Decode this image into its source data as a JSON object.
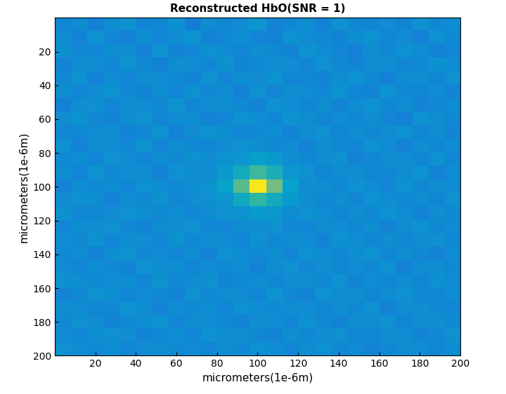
{
  "chart_data": {
    "type": "heatmap",
    "title": "Reconstructed HbO(SNR = 1)",
    "x_label": "micrometers(1e-6m)",
    "y_label": "micrometers(1e-6m)",
    "xlim": [
      0,
      200
    ],
    "ylim": [
      200,
      0
    ],
    "xticks": [
      20,
      40,
      60,
      80,
      100,
      120,
      140,
      160,
      180,
      200
    ],
    "yticks": [
      20,
      40,
      60,
      80,
      100,
      120,
      140,
      160,
      180,
      200
    ],
    "cell_range": [
      0,
      1
    ],
    "cells": [
      [
        0.27,
        0.3,
        0.25,
        0.29,
        0.32,
        0.26,
        0.28,
        0.31,
        0.24,
        0.3,
        0.27,
        0.29,
        0.33,
        0.26,
        0.28,
        0.3,
        0.25,
        0.31,
        0.28,
        0.27,
        0.29,
        0.26,
        0.32,
        0.28,
        0.3
      ],
      [
        0.29,
        0.26,
        0.31,
        0.28,
        0.25,
        0.3,
        0.27,
        0.29,
        0.32,
        0.26,
        0.28,
        0.3,
        0.27,
        0.25,
        0.31,
        0.29,
        0.28,
        0.26,
        0.3,
        0.32,
        0.27,
        0.29,
        0.25,
        0.31,
        0.28
      ],
      [
        0.31,
        0.28,
        0.27,
        0.3,
        0.29,
        0.25,
        0.32,
        0.26,
        0.28,
        0.31,
        0.29,
        0.27,
        0.3,
        0.28,
        0.26,
        0.32,
        0.29,
        0.27,
        0.25,
        0.3,
        0.28,
        0.31,
        0.29,
        0.26,
        0.27
      ],
      [
        0.26,
        0.29,
        0.3,
        0.27,
        0.31,
        0.28,
        0.25,
        0.3,
        0.29,
        0.27,
        0.32,
        0.26,
        0.28,
        0.3,
        0.29,
        0.27,
        0.31,
        0.28,
        0.26,
        0.29,
        0.3,
        0.27,
        0.28,
        0.32,
        0.29
      ],
      [
        0.28,
        0.31,
        0.26,
        0.29,
        0.27,
        0.3,
        0.29,
        0.28,
        0.26,
        0.31,
        0.27,
        0.3,
        0.29,
        0.32,
        0.27,
        0.28,
        0.26,
        0.3,
        0.31,
        0.28,
        0.25,
        0.29,
        0.3,
        0.27,
        0.31
      ],
      [
        0.3,
        0.27,
        0.29,
        0.32,
        0.28,
        0.26,
        0.3,
        0.27,
        0.31,
        0.28,
        0.29,
        0.25,
        0.31,
        0.27,
        0.3,
        0.29,
        0.28,
        0.32,
        0.27,
        0.26,
        0.31,
        0.28,
        0.27,
        0.29,
        0.26
      ],
      [
        0.25,
        0.29,
        0.31,
        0.27,
        0.3,
        0.29,
        0.28,
        0.32,
        0.27,
        0.29,
        0.3,
        0.28,
        0.26,
        0.31,
        0.29,
        0.27,
        0.3,
        0.26,
        0.29,
        0.31,
        0.28,
        0.3,
        0.26,
        0.28,
        0.3
      ],
      [
        0.29,
        0.32,
        0.28,
        0.26,
        0.29,
        0.31,
        0.27,
        0.29,
        0.3,
        0.26,
        0.28,
        0.31,
        0.29,
        0.27,
        0.32,
        0.3,
        0.27,
        0.29,
        0.28,
        0.3,
        0.27,
        0.25,
        0.31,
        0.29,
        0.28
      ],
      [
        0.27,
        0.28,
        0.3,
        0.29,
        0.26,
        0.28,
        0.31,
        0.25,
        0.29,
        0.32,
        0.3,
        0.27,
        0.28,
        0.3,
        0.26,
        0.29,
        0.31,
        0.27,
        0.3,
        0.28,
        0.29,
        0.31,
        0.27,
        0.3,
        0.26
      ],
      [
        0.31,
        0.26,
        0.29,
        0.3,
        0.28,
        0.32,
        0.27,
        0.3,
        0.28,
        0.27,
        0.29,
        0.31,
        0.3,
        0.28,
        0.29,
        0.26,
        0.3,
        0.28,
        0.27,
        0.31,
        0.29,
        0.26,
        0.3,
        0.28,
        0.29
      ],
      [
        0.28,
        0.3,
        0.27,
        0.31,
        0.29,
        0.27,
        0.3,
        0.28,
        0.31,
        0.29,
        0.32,
        0.33,
        0.36,
        0.34,
        0.3,
        0.28,
        0.29,
        0.31,
        0.26,
        0.28,
        0.3,
        0.29,
        0.27,
        0.31,
        0.27
      ],
      [
        0.3,
        0.27,
        0.31,
        0.28,
        0.3,
        0.29,
        0.26,
        0.31,
        0.29,
        0.3,
        0.34,
        0.42,
        0.52,
        0.44,
        0.33,
        0.31,
        0.27,
        0.29,
        0.3,
        0.27,
        0.28,
        0.3,
        0.31,
        0.26,
        0.3
      ],
      [
        0.26,
        0.29,
        0.28,
        0.3,
        0.27,
        0.31,
        0.29,
        0.28,
        0.3,
        0.32,
        0.38,
        0.56,
        0.95,
        0.6,
        0.37,
        0.29,
        0.3,
        0.28,
        0.31,
        0.29,
        0.27,
        0.31,
        0.28,
        0.3,
        0.29
      ],
      [
        0.29,
        0.31,
        0.3,
        0.26,
        0.29,
        0.28,
        0.31,
        0.27,
        0.29,
        0.31,
        0.33,
        0.41,
        0.5,
        0.42,
        0.34,
        0.3,
        0.28,
        0.3,
        0.27,
        0.31,
        0.29,
        0.28,
        0.3,
        0.27,
        0.31
      ],
      [
        0.31,
        0.28,
        0.27,
        0.29,
        0.31,
        0.3,
        0.28,
        0.3,
        0.27,
        0.29,
        0.31,
        0.32,
        0.35,
        0.33,
        0.29,
        0.31,
        0.29,
        0.27,
        0.3,
        0.28,
        0.31,
        0.29,
        0.26,
        0.3,
        0.28
      ],
      [
        0.27,
        0.3,
        0.29,
        0.31,
        0.28,
        0.26,
        0.3,
        0.29,
        0.31,
        0.28,
        0.27,
        0.3,
        0.29,
        0.31,
        0.28,
        0.27,
        0.3,
        0.29,
        0.28,
        0.3,
        0.26,
        0.29,
        0.31,
        0.28,
        0.29
      ],
      [
        0.3,
        0.28,
        0.31,
        0.27,
        0.3,
        0.29,
        0.27,
        0.32,
        0.28,
        0.3,
        0.29,
        0.27,
        0.31,
        0.28,
        0.3,
        0.29,
        0.26,
        0.31,
        0.29,
        0.27,
        0.3,
        0.28,
        0.29,
        0.31,
        0.27
      ],
      [
        0.28,
        0.29,
        0.26,
        0.3,
        0.32,
        0.28,
        0.29,
        0.27,
        0.3,
        0.26,
        0.31,
        0.29,
        0.28,
        0.3,
        0.27,
        0.31,
        0.29,
        0.28,
        0.3,
        0.32,
        0.27,
        0.3,
        0.28,
        0.26,
        0.3
      ],
      [
        0.29,
        0.27,
        0.3,
        0.28,
        0.26,
        0.31,
        0.29,
        0.3,
        0.27,
        0.29,
        0.28,
        0.3,
        0.26,
        0.29,
        0.31,
        0.28,
        0.3,
        0.27,
        0.29,
        0.28,
        0.31,
        0.26,
        0.3,
        0.29,
        0.28
      ],
      [
        0.31,
        0.3,
        0.28,
        0.29,
        0.3,
        0.27,
        0.32,
        0.28,
        0.29,
        0.31,
        0.26,
        0.28,
        0.3,
        0.27,
        0.29,
        0.3,
        0.28,
        0.31,
        0.26,
        0.29,
        0.28,
        0.3,
        0.27,
        0.31,
        0.29
      ],
      [
        0.26,
        0.28,
        0.31,
        0.3,
        0.27,
        0.29,
        0.28,
        0.26,
        0.31,
        0.28,
        0.3,
        0.29,
        0.27,
        0.32,
        0.28,
        0.26,
        0.31,
        0.29,
        0.3,
        0.27,
        0.29,
        0.31,
        0.28,
        0.27,
        0.3
      ],
      [
        0.3,
        0.29,
        0.27,
        0.28,
        0.31,
        0.3,
        0.26,
        0.29,
        0.28,
        0.3,
        0.27,
        0.31,
        0.29,
        0.28,
        0.3,
        0.29,
        0.27,
        0.3,
        0.28,
        0.31,
        0.26,
        0.29,
        0.3,
        0.28,
        0.27
      ],
      [
        0.28,
        0.31,
        0.29,
        0.26,
        0.28,
        0.3,
        0.31,
        0.27,
        0.3,
        0.29,
        0.28,
        0.26,
        0.3,
        0.29,
        0.27,
        0.31,
        0.28,
        0.26,
        0.3,
        0.29,
        0.31,
        0.27,
        0.29,
        0.3,
        0.28
      ],
      [
        0.29,
        0.27,
        0.3,
        0.31,
        0.29,
        0.26,
        0.28,
        0.3,
        0.27,
        0.31,
        0.29,
        0.3,
        0.28,
        0.26,
        0.3,
        0.28,
        0.29,
        0.31,
        0.27,
        0.28,
        0.3,
        0.29,
        0.26,
        0.28,
        0.31
      ],
      [
        0.31,
        0.29,
        0.28,
        0.3,
        0.27,
        0.29,
        0.3,
        0.28,
        0.29,
        0.27,
        0.3,
        0.28,
        0.31,
        0.29,
        0.27,
        0.3,
        0.31,
        0.28,
        0.29,
        0.26,
        0.28,
        0.3,
        0.29,
        0.27,
        0.3
      ]
    ]
  }
}
